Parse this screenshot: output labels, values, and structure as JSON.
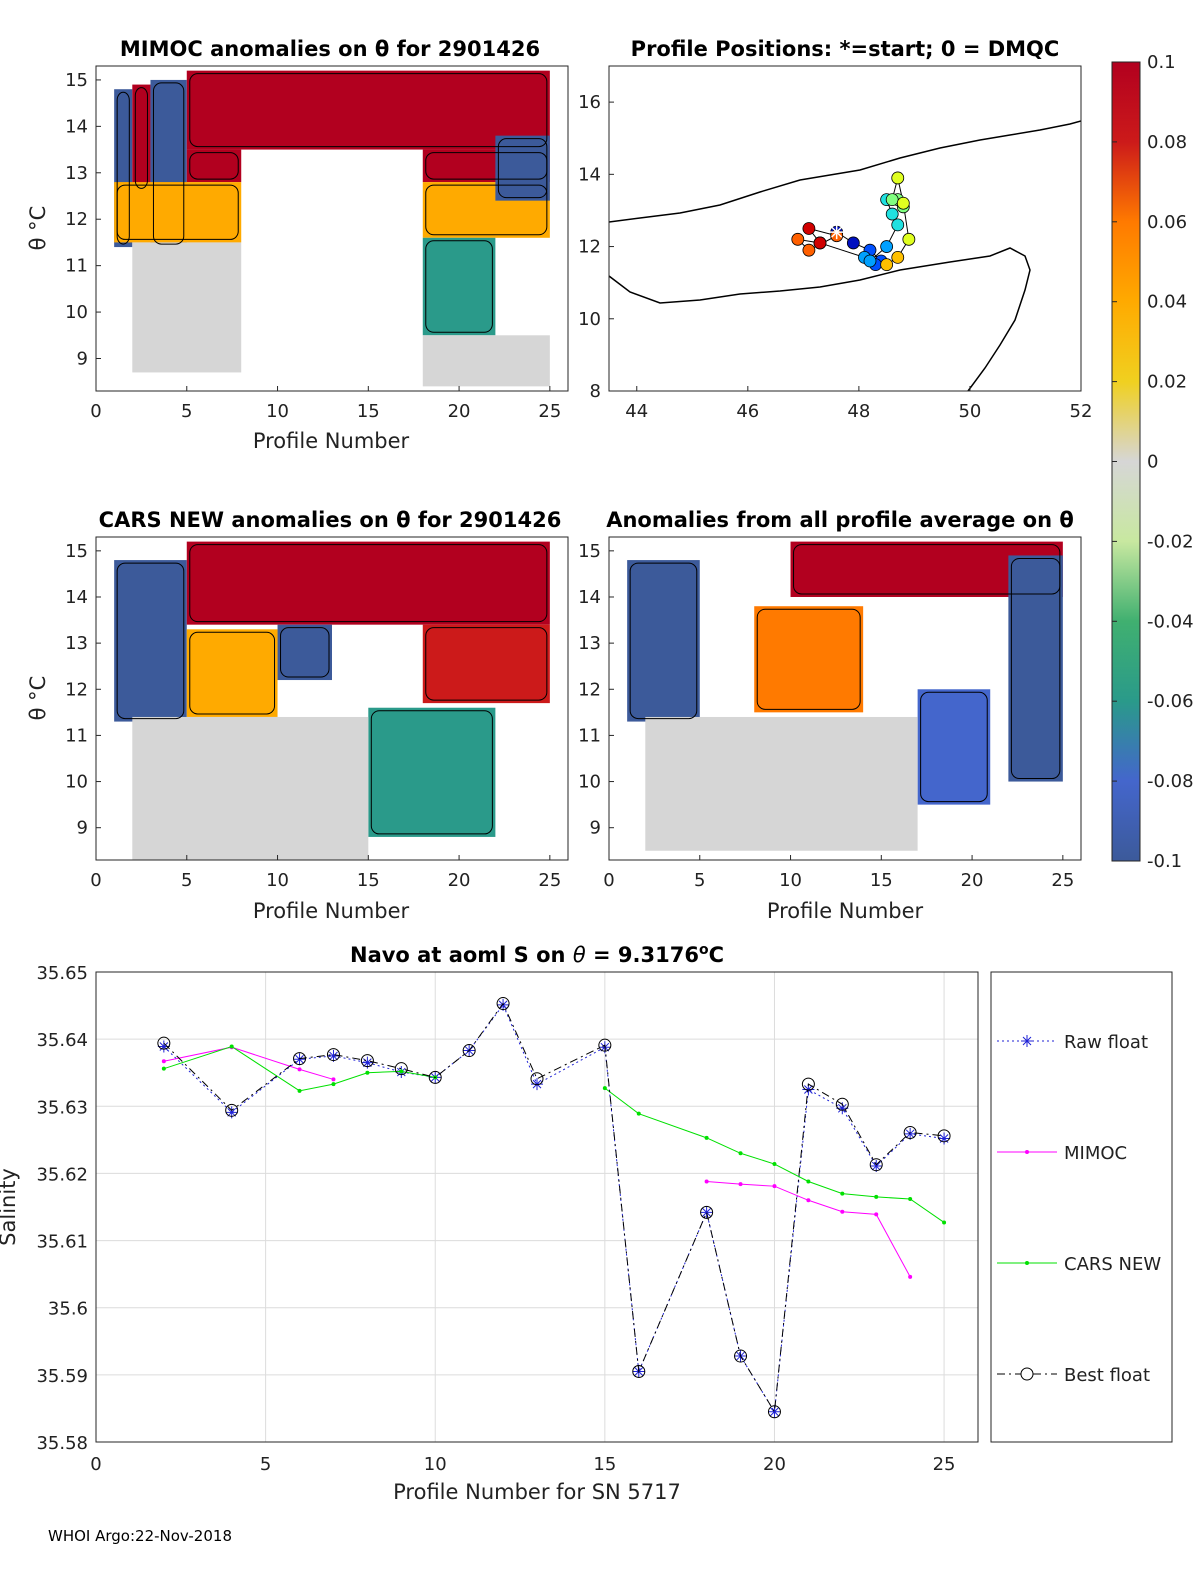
{
  "colors": {
    "hot": "#b2001f",
    "warm_orange": "#f08020",
    "yellow": "#f0d020",
    "neutral": "#d6d6d6",
    "light_green": "#c8e8a0",
    "green": "#40b070",
    "blue": "#3c5a9a",
    "raw_float": "#1f22d6",
    "mimoc": "#ff00ff",
    "cars_new": "#00e000",
    "best_float": "#000000"
  },
  "footer": "WHOI Argo:22-Nov-2018",
  "colorbar": {
    "name": "anomaly-colorbar",
    "ticks": [
      "0.1",
      "0.08",
      "0.06",
      "0.04",
      "0.02",
      "0",
      "-0.02",
      "-0.04",
      "-0.06",
      "-0.08",
      "-0.1"
    ],
    "stops": [
      "#b2001f",
      "#cc1a1a",
      "#ff7a00",
      "#ffaa00",
      "#f0d020",
      "#d6d6d6",
      "#c8e8a0",
      "#40b070",
      "#2a9a8a",
      "#4466cc",
      "#3c5a9a"
    ]
  },
  "panels": {
    "mimoc": {
      "title": "MIMOC anomalies on θ  for 2901426",
      "xlabel": "Profile Number",
      "ylabel": "θ °C",
      "xticks": [
        "0",
        "5",
        "10",
        "15",
        "20",
        "25"
      ],
      "yticks": [
        "15",
        "14",
        "13",
        "12",
        "11",
        "10",
        "9"
      ]
    },
    "positions": {
      "title": "Profile Positions: *=start; 0 = DMQC",
      "xticks": [
        "44",
        "46",
        "48",
        "50",
        "52"
      ],
      "yticks": [
        "16",
        "14",
        "12",
        "10",
        "8"
      ]
    },
    "cars": {
      "title": "CARS NEW anomalies on θ for 2901426",
      "xlabel": "Profile Number",
      "ylabel": "θ °C",
      "xticks": [
        "0",
        "5",
        "10",
        "15",
        "20",
        "25"
      ],
      "yticks": [
        "15",
        "14",
        "13",
        "12",
        "11",
        "10",
        "9"
      ]
    },
    "allavg": {
      "title": "Anomalies from all profile average on θ",
      "xlabel": "Profile Number",
      "xticks": [
        "0",
        "5",
        "10",
        "15",
        "20",
        "25"
      ],
      "yticks": [
        "15",
        "14",
        "13",
        "12",
        "11",
        "10",
        "9"
      ]
    }
  },
  "chart_data": [
    {
      "type": "heatmap",
      "name": "mimoc-anomalies",
      "title": "MIMOC anomalies on θ  for 2901426",
      "xlabel": "Profile Number",
      "ylabel": "θ °C",
      "xlim": [
        0,
        26
      ],
      "ylim": [
        8.3,
        15.3
      ],
      "color_range": [
        -0.1,
        0.1
      ],
      "note": "approximate anomaly regions estimated from image",
      "regions": [
        {
          "x": [
            1,
            2
          ],
          "y": [
            11.4,
            14.8
          ],
          "anomaly": -0.1
        },
        {
          "x": [
            2,
            3
          ],
          "y": [
            12.6,
            14.9
          ],
          "anomaly": 0.1
        },
        {
          "x": [
            3,
            5
          ],
          "y": [
            11.4,
            15.0
          ],
          "anomaly": -0.1
        },
        {
          "x": [
            5,
            25
          ],
          "y": [
            13.5,
            15.2
          ],
          "anomaly": 0.1
        },
        {
          "x": [
            5,
            8
          ],
          "y": [
            12.8,
            13.5
          ],
          "anomaly": 0.1
        },
        {
          "x": [
            18,
            25
          ],
          "y": [
            12.8,
            13.5
          ],
          "anomaly": 0.1
        },
        {
          "x": [
            1,
            8
          ],
          "y": [
            11.5,
            12.8
          ],
          "anomaly": 0.05
        },
        {
          "x": [
            18,
            25
          ],
          "y": [
            11.6,
            12.8
          ],
          "anomaly": 0.04
        },
        {
          "x": [
            22,
            25
          ],
          "y": [
            12.4,
            13.8
          ],
          "anomaly": -0.1
        },
        {
          "x": [
            18,
            22
          ],
          "y": [
            9.5,
            11.6
          ],
          "anomaly": -0.05
        },
        {
          "x": [
            2,
            8
          ],
          "y": [
            8.7,
            11.5
          ],
          "anomaly": -0.005
        },
        {
          "x": [
            18,
            25
          ],
          "y": [
            8.4,
            9.5
          ],
          "anomaly": -0.005
        }
      ]
    },
    {
      "type": "scatter",
      "name": "profile-positions",
      "title": "Profile Positions: *=start; 0 = DMQC",
      "xlim": [
        43.5,
        52
      ],
      "ylim": [
        8,
        17
      ],
      "start_marker": {
        "x": 47.6,
        "y": 12.4
      },
      "x": [
        47.6,
        47.9,
        48.2,
        48.4,
        48.3,
        48.1,
        48.2,
        48.5,
        48.7,
        48.6,
        48.5,
        48.7,
        48.8,
        48.6,
        48.7,
        48.8,
        48.9,
        48.7,
        48.5,
        47.3,
        46.9,
        47.1,
        47.6,
        47.1,
        47.3
      ],
      "y": [
        12.4,
        12.1,
        11.9,
        11.6,
        11.5,
        11.7,
        11.6,
        12.0,
        12.6,
        12.9,
        13.3,
        13.3,
        13.1,
        13.3,
        13.9,
        13.2,
        12.2,
        11.7,
        11.5,
        12.1,
        12.2,
        11.9,
        12.3,
        12.5,
        12.1
      ]
    },
    {
      "type": "heatmap",
      "name": "cars-new-anomalies",
      "title": "CARS NEW anomalies on θ for 2901426",
      "xlabel": "Profile Number",
      "ylabel": "θ °C",
      "xlim": [
        0,
        26
      ],
      "ylim": [
        8.3,
        15.3
      ],
      "color_range": [
        -0.1,
        0.1
      ],
      "note": "approximate anomaly regions estimated from image",
      "regions": [
        {
          "x": [
            1,
            5
          ],
          "y": [
            11.3,
            14.8
          ],
          "anomaly": -0.1
        },
        {
          "x": [
            5,
            25
          ],
          "y": [
            13.4,
            15.2
          ],
          "anomaly": 0.1
        },
        {
          "x": [
            10,
            13
          ],
          "y": [
            12.2,
            13.4
          ],
          "anomaly": -0.1
        },
        {
          "x": [
            5,
            10
          ],
          "y": [
            11.4,
            13.3
          ],
          "anomaly": 0.05
        },
        {
          "x": [
            18,
            25
          ],
          "y": [
            11.7,
            13.4
          ],
          "anomaly": 0.08
        },
        {
          "x": [
            15,
            22
          ],
          "y": [
            8.8,
            11.6
          ],
          "anomaly": -0.05
        },
        {
          "x": [
            2,
            15
          ],
          "y": [
            8.3,
            11.4
          ],
          "anomaly": -0.002
        }
      ]
    },
    {
      "type": "heatmap",
      "name": "all-profile-average-anomalies",
      "title": "Anomalies from all profile average on θ",
      "xlabel": "Profile Number",
      "xlim": [
        0,
        26
      ],
      "ylim": [
        8.3,
        15.3
      ],
      "color_range": [
        -0.1,
        0.1
      ],
      "note": "approximate anomaly regions estimated from image",
      "regions": [
        {
          "x": [
            1,
            5
          ],
          "y": [
            11.3,
            14.8
          ],
          "anomaly": -0.1
        },
        {
          "x": [
            10,
            25
          ],
          "y": [
            14.0,
            15.2
          ],
          "anomaly": 0.1
        },
        {
          "x": [
            8,
            14
          ],
          "y": [
            11.5,
            13.8
          ],
          "anomaly": 0.06
        },
        {
          "x": [
            22,
            25
          ],
          "y": [
            10.0,
            14.9
          ],
          "anomaly": -0.1
        },
        {
          "x": [
            17,
            21
          ],
          "y": [
            9.5,
            12.0
          ],
          "anomaly": -0.07
        },
        {
          "x": [
            2,
            17
          ],
          "y": [
            8.5,
            11.4
          ],
          "anomaly": -0.002
        }
      ]
    },
    {
      "type": "line",
      "name": "salinity-comparison",
      "title": "Navo at aoml S on θ = 9.3176°C",
      "title_parts": {
        "prefix": "Navo at aoml S on ",
        "theta": "θ",
        "equals": " = 9.3176",
        "deg": "o",
        "unit": "C"
      },
      "xlabel": "Profile Number for SN 5717",
      "ylabel": "Salinity",
      "xlim": [
        0,
        26
      ],
      "ylim": [
        35.58,
        35.65
      ],
      "xticks": [
        "0",
        "5",
        "10",
        "15",
        "20",
        "25"
      ],
      "yticks": [
        "35.65",
        "35.64",
        "35.63",
        "35.62",
        "35.61",
        "35.6",
        "35.59",
        "35.58"
      ],
      "series": [
        {
          "name": "Raw float",
          "style": "dotted-star",
          "x": [
            2,
            4,
            6,
            7,
            8,
            9,
            10,
            11,
            12,
            13,
            15,
            16,
            18,
            19,
            20,
            21,
            22,
            23,
            24,
            25
          ],
          "values": [
            35.6389,
            35.6291,
            35.637,
            35.6375,
            35.6365,
            35.6351,
            35.6343,
            35.6383,
            35.6451,
            35.6333,
            35.6388,
            35.5905,
            35.6142,
            35.5928,
            35.5845,
            35.6325,
            35.6297,
            35.6211,
            35.6259,
            35.6252
          ]
        },
        {
          "name": "MIMOC",
          "style": "solid-dot",
          "x": [
            2,
            4,
            6,
            7,
            18,
            19,
            20,
            21,
            22,
            23,
            24
          ],
          "values": [
            35.6367,
            35.6388,
            35.6355,
            35.634,
            35.6188,
            35.6184,
            35.6181,
            35.616,
            35.6143,
            35.6139,
            35.6046
          ]
        },
        {
          "name": "CARS NEW",
          "style": "solid-dot",
          "x": [
            2,
            4,
            6,
            7,
            8,
            9,
            10,
            15,
            16,
            18,
            19,
            20,
            21,
            22,
            23,
            24,
            25
          ],
          "values": [
            35.6356,
            35.6389,
            35.6323,
            35.6333,
            35.635,
            35.6352,
            35.6343,
            35.6327,
            35.6289,
            35.6253,
            35.623,
            35.6214,
            35.6188,
            35.617,
            35.6165,
            35.6162,
            35.6127
          ]
        },
        {
          "name": "Best float",
          "style": "dashdot-circle",
          "x": [
            2,
            4,
            6,
            7,
            8,
            9,
            10,
            11,
            12,
            13,
            15,
            16,
            18,
            19,
            20,
            21,
            22,
            23,
            24,
            25
          ],
          "values": [
            35.6394,
            35.6294,
            35.6371,
            35.6377,
            35.6368,
            35.6356,
            35.6343,
            35.6383,
            35.6453,
            35.6341,
            35.6391,
            35.5905,
            35.6142,
            35.5928,
            35.5845,
            35.6333,
            35.6303,
            35.6213,
            35.6261,
            35.6256
          ]
        }
      ]
    }
  ]
}
